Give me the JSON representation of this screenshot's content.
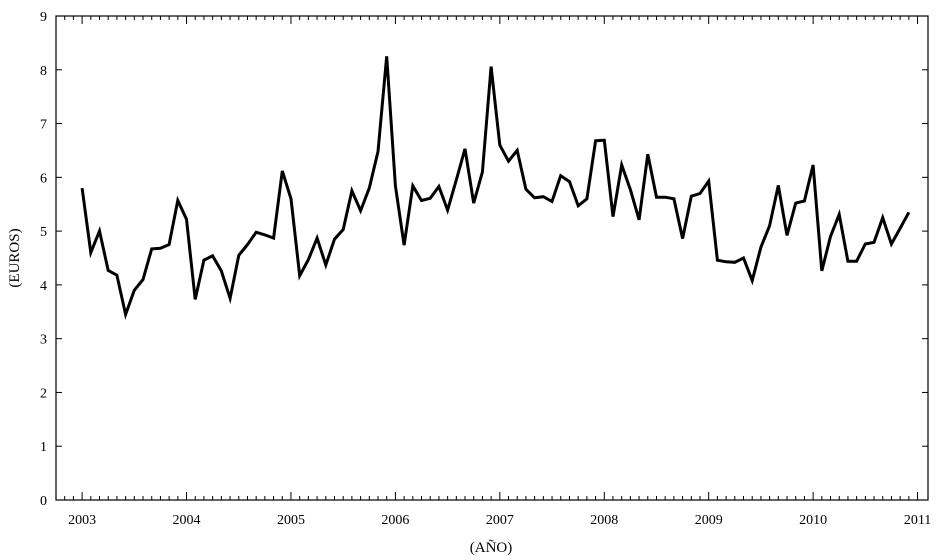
{
  "chart_data": {
    "type": "line",
    "title": "",
    "xlabel": "(AÑO)",
    "ylabel": "(EUROS)",
    "xlim": [
      2002.75,
      2011.1
    ],
    "ylim": [
      0,
      9
    ],
    "x_ticks": [
      2003,
      2004,
      2005,
      2006,
      2007,
      2008,
      2009,
      2010,
      2011
    ],
    "x_tick_labels": [
      "2003",
      "2004",
      "2005",
      "2006",
      "2007",
      "2008",
      "2009",
      "2010",
      "2011"
    ],
    "y_ticks": [
      0,
      1,
      2,
      3,
      4,
      5,
      6,
      7,
      8,
      9
    ],
    "y_tick_labels": [
      "0",
      "1",
      "2",
      "3",
      "4",
      "5",
      "6",
      "7",
      "8",
      "9"
    ],
    "grid": false,
    "legend": "none",
    "line_color": "#000000",
    "series": [
      {
        "name": "",
        "x": [
          2003.0,
          2003.0833,
          2003.1667,
          2003.25,
          2003.3333,
          2003.4167,
          2003.5,
          2003.5833,
          2003.6667,
          2003.75,
          2003.8333,
          2003.9167,
          2004.0,
          2004.0833,
          2004.1667,
          2004.25,
          2004.3333,
          2004.4167,
          2004.5,
          2004.5833,
          2004.6667,
          2004.75,
          2004.8333,
          2004.9167,
          2005.0,
          2005.0833,
          2005.1667,
          2005.25,
          2005.3333,
          2005.4167,
          2005.5,
          2005.5833,
          2005.6667,
          2005.75,
          2005.8333,
          2005.9167,
          2006.0,
          2006.0833,
          2006.1667,
          2006.25,
          2006.3333,
          2006.4167,
          2006.5,
          2006.5833,
          2006.6667,
          2006.75,
          2006.8333,
          2006.9167,
          2007.0,
          2007.0833,
          2007.1667,
          2007.25,
          2007.3333,
          2007.4167,
          2007.5,
          2007.5833,
          2007.6667,
          2007.75,
          2007.8333,
          2007.9167,
          2008.0,
          2008.0833,
          2008.1667,
          2008.25,
          2008.3333,
          2008.4167,
          2008.5,
          2008.5833,
          2008.6667,
          2008.75,
          2008.8333,
          2008.9167,
          2009.0,
          2009.0833,
          2009.1667,
          2009.25,
          2009.3333,
          2009.4167,
          2009.5,
          2009.5833,
          2009.6667,
          2009.75,
          2009.8333,
          2009.9167,
          2010.0,
          2010.0833,
          2010.1667,
          2010.25,
          2010.3333,
          2010.4167,
          2010.5,
          2010.5833,
          2010.6667,
          2010.75,
          2010.8333,
          2010.9167
        ],
        "y": [
          5.8,
          4.6,
          5.0,
          4.27,
          4.18,
          3.45,
          3.9,
          4.1,
          4.67,
          4.68,
          4.75,
          5.57,
          5.22,
          3.73,
          4.46,
          4.54,
          4.26,
          3.75,
          4.55,
          4.75,
          4.98,
          4.93,
          4.87,
          6.12,
          5.6,
          4.17,
          4.47,
          4.87,
          4.37,
          4.85,
          5.03,
          5.75,
          5.38,
          5.8,
          6.48,
          8.25,
          5.84,
          4.74,
          5.84,
          5.57,
          5.61,
          5.83,
          5.39,
          5.95,
          6.53,
          5.52,
          6.1,
          8.06,
          6.6,
          6.3,
          6.5,
          5.78,
          5.62,
          5.64,
          5.55,
          6.03,
          5.92,
          5.47,
          5.6,
          6.68,
          6.69,
          5.27,
          6.23,
          5.77,
          5.21,
          6.43,
          5.63,
          5.63,
          5.6,
          4.86,
          5.65,
          5.7,
          5.93,
          4.46,
          4.43,
          4.42,
          4.5,
          4.08,
          4.7,
          5.1,
          5.85,
          4.92,
          5.52,
          5.56,
          6.23,
          4.26,
          4.9,
          5.31,
          4.44,
          4.44,
          4.76,
          4.79,
          5.25,
          4.76,
          5.05,
          5.35
        ]
      }
    ]
  }
}
